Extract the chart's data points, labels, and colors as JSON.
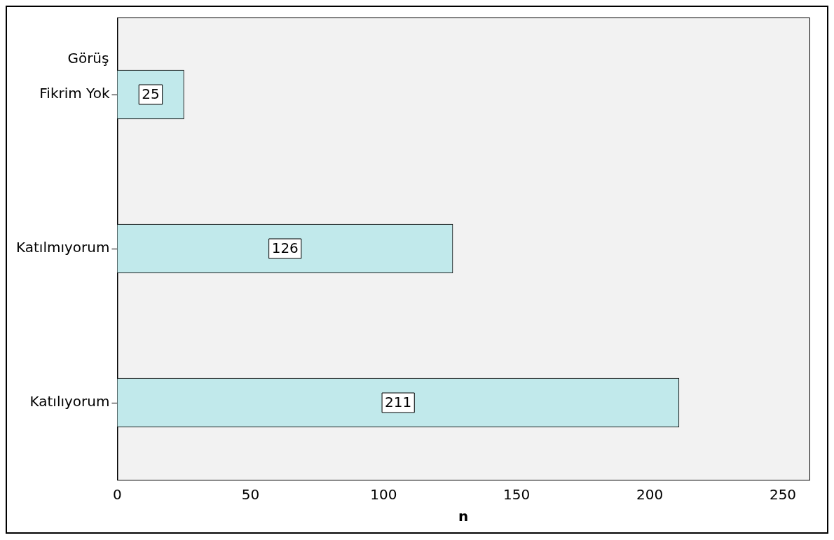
{
  "chart_data": {
    "type": "bar",
    "orientation": "horizontal",
    "ylabel": "Görüş",
    "xlabel": "n",
    "categories": [
      "Fikrim Yok",
      "Katılmıyorum",
      "Katılıyorum"
    ],
    "values": [
      25,
      126,
      211
    ],
    "color": "#c1e9eb",
    "xlim": [
      0,
      260
    ],
    "xticks": [
      0,
      50,
      100,
      150,
      200,
      250
    ],
    "grid": false,
    "legend": false,
    "data_labels": true
  }
}
